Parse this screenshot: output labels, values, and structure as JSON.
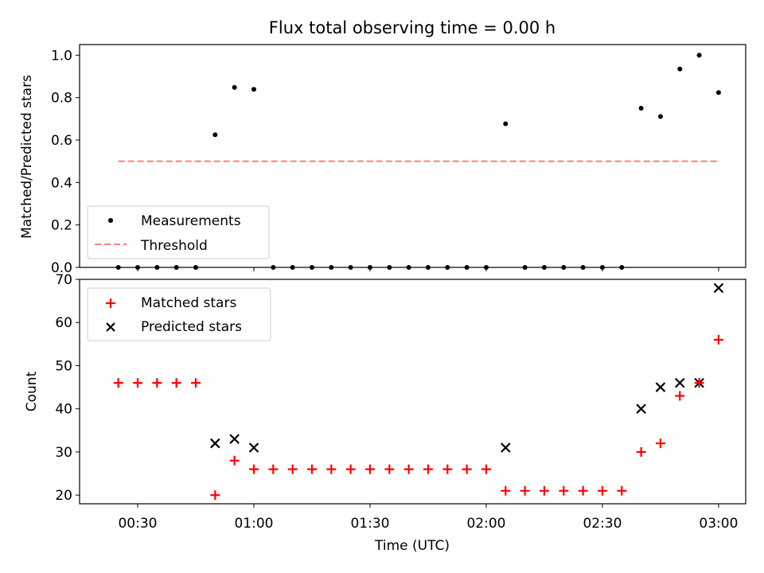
{
  "chart_data": [
    {
      "type": "scatter",
      "title": "Flux total observing time = 0.00 h",
      "xlabel": "",
      "ylabel": "Matched/Predicted stars",
      "xlim": [
        "00:15",
        "03:07"
      ],
      "ylim": [
        0.0,
        1.05
      ],
      "yticks": [
        0.0,
        0.2,
        0.4,
        0.6,
        0.8,
        1.0
      ],
      "yticklabels": [
        "0.0",
        "0.2",
        "0.4",
        "0.6",
        "0.8",
        "1.0"
      ],
      "grid": false,
      "legend": {
        "placement": "lower-left",
        "entries": [
          "Measurements",
          "Threshold"
        ]
      },
      "series": [
        {
          "name": "Measurements",
          "marker": "dot",
          "color": "#000000",
          "points": [
            [
              "00:25",
              0.0
            ],
            [
              "00:30",
              0.0
            ],
            [
              "00:35",
              0.0
            ],
            [
              "00:40",
              0.0
            ],
            [
              "00:45",
              0.0
            ],
            [
              "00:50",
              0.625
            ],
            [
              "00:55",
              0.848
            ],
            [
              "01:00",
              0.839
            ],
            [
              "01:05",
              0.0
            ],
            [
              "01:10",
              0.0
            ],
            [
              "01:15",
              0.0
            ],
            [
              "01:20",
              0.0
            ],
            [
              "01:25",
              0.0
            ],
            [
              "01:30",
              0.0
            ],
            [
              "01:35",
              0.0
            ],
            [
              "01:40",
              0.0
            ],
            [
              "01:45",
              0.0
            ],
            [
              "01:50",
              0.0
            ],
            [
              "01:55",
              0.0
            ],
            [
              "02:00",
              0.0
            ],
            [
              "02:05",
              0.677
            ],
            [
              "02:10",
              0.0
            ],
            [
              "02:15",
              0.0
            ],
            [
              "02:20",
              0.0
            ],
            [
              "02:25",
              0.0
            ],
            [
              "02:30",
              0.0
            ],
            [
              "02:35",
              0.0
            ],
            [
              "02:40",
              0.75
            ],
            [
              "02:45",
              0.711
            ],
            [
              "02:50",
              0.935
            ],
            [
              "02:55",
              1.0
            ],
            [
              "03:00",
              0.824
            ]
          ]
        },
        {
          "name": "Threshold",
          "style": "dashed-line",
          "color": "#ff7f7f",
          "points": [
            [
              "00:25",
              0.5
            ],
            [
              "03:00",
              0.5
            ]
          ]
        }
      ]
    },
    {
      "type": "scatter",
      "title": "",
      "xlabel": "Time (UTC)",
      "ylabel": "Count",
      "xlim": [
        "00:15",
        "03:07"
      ],
      "ylim": [
        18,
        70
      ],
      "xticks": [
        "00:30",
        "01:00",
        "01:30",
        "02:00",
        "02:30",
        "03:00"
      ],
      "yticks": [
        20,
        30,
        40,
        50,
        60,
        70
      ],
      "yticklabels": [
        "20",
        "30",
        "40",
        "50",
        "60",
        "70"
      ],
      "grid": false,
      "legend": {
        "placement": "top-left",
        "entries": [
          "Matched stars",
          "Predicted stars"
        ]
      },
      "series": [
        {
          "name": "Matched stars",
          "marker": "plus",
          "color": "#ff0000",
          "points": [
            [
              "00:25",
              46
            ],
            [
              "00:30",
              46
            ],
            [
              "00:35",
              46
            ],
            [
              "00:40",
              46
            ],
            [
              "00:45",
              46
            ],
            [
              "00:50",
              20
            ],
            [
              "00:55",
              28
            ],
            [
              "01:00",
              26
            ],
            [
              "01:05",
              26
            ],
            [
              "01:10",
              26
            ],
            [
              "01:15",
              26
            ],
            [
              "01:20",
              26
            ],
            [
              "01:25",
              26
            ],
            [
              "01:30",
              26
            ],
            [
              "01:35",
              26
            ],
            [
              "01:40",
              26
            ],
            [
              "01:45",
              26
            ],
            [
              "01:50",
              26
            ],
            [
              "01:55",
              26
            ],
            [
              "02:00",
              26
            ],
            [
              "02:05",
              21
            ],
            [
              "02:10",
              21
            ],
            [
              "02:15",
              21
            ],
            [
              "02:20",
              21
            ],
            [
              "02:25",
              21
            ],
            [
              "02:30",
              21
            ],
            [
              "02:35",
              21
            ],
            [
              "02:40",
              30
            ],
            [
              "02:45",
              32
            ],
            [
              "02:50",
              43
            ],
            [
              "02:55",
              46
            ],
            [
              "03:00",
              56
            ]
          ]
        },
        {
          "name": "Predicted stars",
          "marker": "x",
          "color": "#000000",
          "points": [
            [
              "00:50",
              32
            ],
            [
              "00:55",
              33
            ],
            [
              "01:00",
              31
            ],
            [
              "02:05",
              31
            ],
            [
              "02:40",
              40
            ],
            [
              "02:45",
              45
            ],
            [
              "02:50",
              46
            ],
            [
              "02:55",
              46
            ],
            [
              "03:00",
              68
            ]
          ]
        }
      ]
    }
  ]
}
